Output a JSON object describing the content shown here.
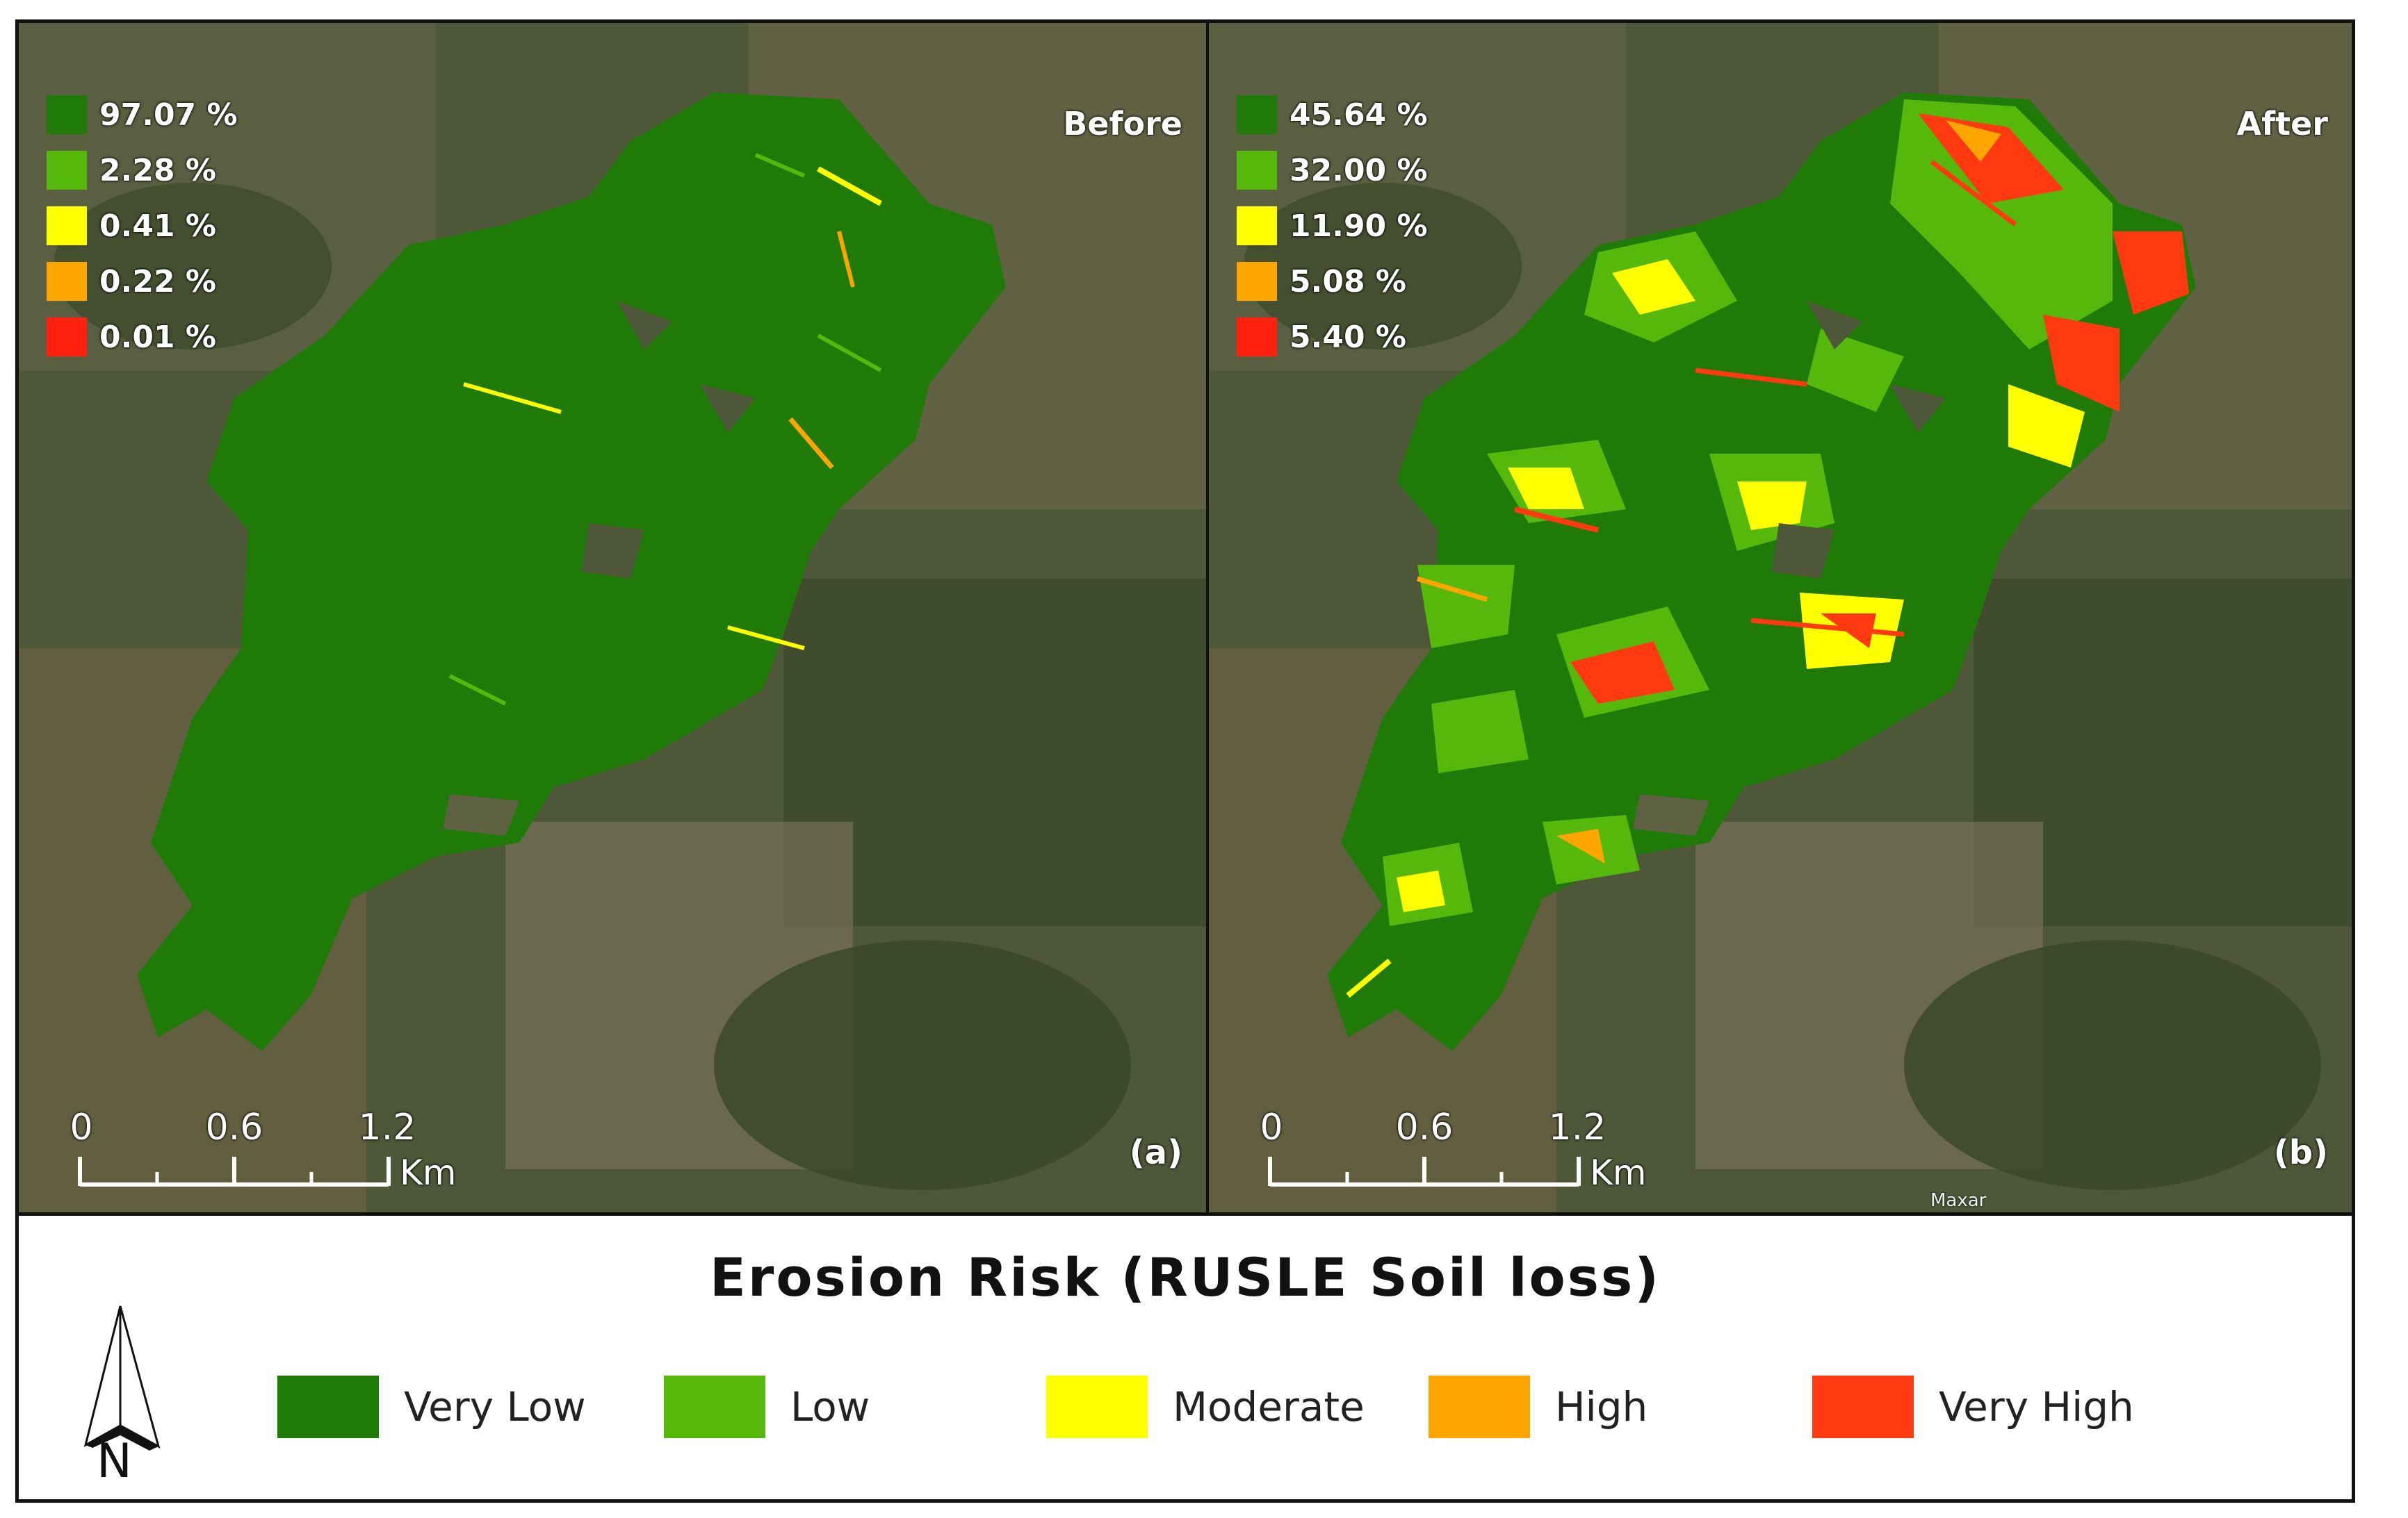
{
  "colors": {
    "very_low": "#1f7a08",
    "low": "#55b80b",
    "moderate": "#ffff00",
    "high": "#ffa500",
    "very_high": "#ff3a10"
  },
  "panel_a": {
    "state": "Before",
    "letter": "(a)",
    "percentages": [
      "97.07 %",
      "2.28 %",
      "0.41 %",
      "0.22 %",
      "0.01 %"
    ]
  },
  "panel_b": {
    "state": "After",
    "letter": "(b)",
    "percentages": [
      "45.64 %",
      "32.00 %",
      "11.90 %",
      "5.08 %",
      "5.40 %"
    ],
    "credit": "Maxar"
  },
  "scale_bar": {
    "ticks": [
      "0",
      "0.6",
      "1.2"
    ],
    "unit": "Km"
  },
  "legend": {
    "title": "Erosion Risk (RUSLE Soil loss)",
    "north_label": "N",
    "classes": [
      "Very Low",
      "Low",
      "Moderate",
      "High",
      "Very High"
    ]
  }
}
